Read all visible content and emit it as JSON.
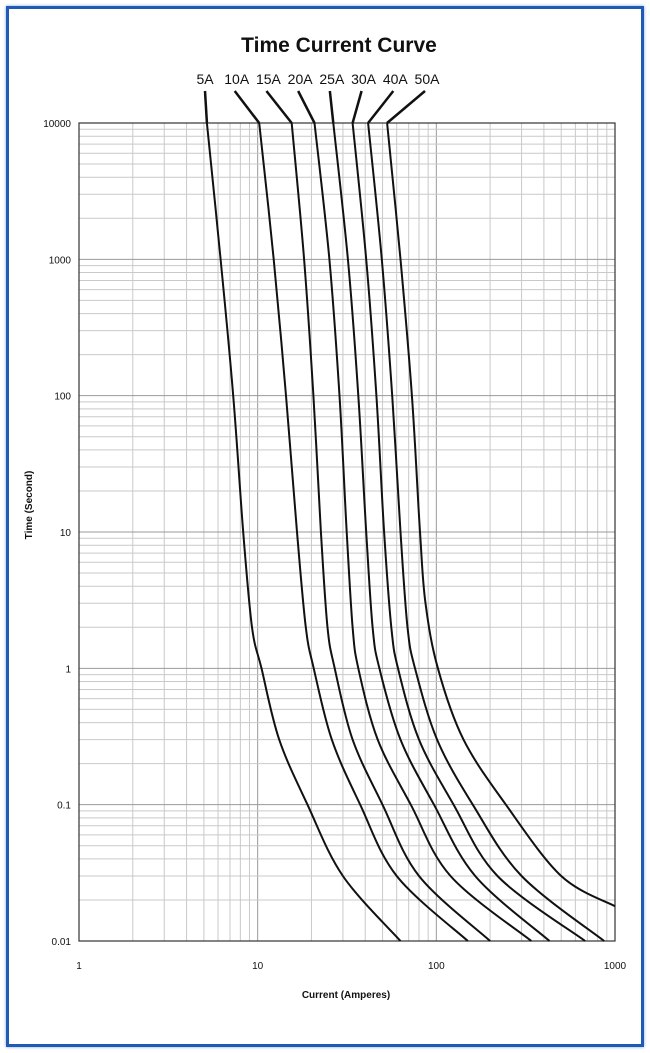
{
  "chart_data": {
    "type": "line",
    "title": "Time Current Curve",
    "xlabel": "Current (Amperes)",
    "ylabel": "Time (Second)",
    "xscale": "log",
    "yscale": "log",
    "xlim": [
      1,
      1000
    ],
    "ylim": [
      0.01,
      10000
    ],
    "grid": true,
    "x_tick_labels": [
      "1",
      "10",
      "100",
      "1000"
    ],
    "y_tick_labels": [
      "0.01",
      "0.1",
      "1",
      "10",
      "100",
      "1000",
      "10000"
    ],
    "series": [
      {
        "name": "5A",
        "points": [
          [
            5.2,
            10000
          ],
          [
            6.2,
            1000
          ],
          [
            7.3,
            100
          ],
          [
            8.3,
            10
          ],
          [
            9.3,
            2
          ],
          [
            10.5,
            1
          ],
          [
            13.2,
            0.3
          ],
          [
            19,
            0.1
          ],
          [
            30,
            0.03
          ],
          [
            63,
            0.01
          ]
        ]
      },
      {
        "name": "10A",
        "points": [
          [
            10.2,
            10000
          ],
          [
            12.3,
            1000
          ],
          [
            14.4,
            100
          ],
          [
            16.6,
            10
          ],
          [
            18.6,
            2
          ],
          [
            20.6,
            1
          ],
          [
            26,
            0.3
          ],
          [
            37.5,
            0.1
          ],
          [
            60,
            0.03
          ],
          [
            150,
            0.01
          ]
        ]
      },
      {
        "name": "15A",
        "points": [
          [
            15.5,
            10000
          ],
          [
            18.2,
            1000
          ],
          [
            20.5,
            100
          ],
          [
            22.6,
            10
          ],
          [
            24.6,
            2
          ],
          [
            27,
            1
          ],
          [
            34,
            0.3
          ],
          [
            50,
            0.1
          ],
          [
            80,
            0.03
          ],
          [
            200,
            0.01
          ]
        ]
      },
      {
        "name": "20A",
        "points": [
          [
            20.8,
            10000
          ],
          [
            25.2,
            1000
          ],
          [
            28.7,
            100
          ],
          [
            31.5,
            10
          ],
          [
            34,
            2
          ],
          [
            36.6,
            1
          ],
          [
            47,
            0.3
          ],
          [
            72,
            0.1
          ],
          [
            120,
            0.03
          ],
          [
            340,
            0.01
          ]
        ]
      },
      {
        "name": "25A",
        "points": [
          [
            26.5,
            10000
          ],
          [
            32,
            1000
          ],
          [
            36.6,
            100
          ],
          [
            40.5,
            10
          ],
          [
            44,
            2
          ],
          [
            48,
            1
          ],
          [
            63,
            0.3
          ],
          [
            97,
            0.1
          ],
          [
            165,
            0.03
          ],
          [
            430,
            0.01
          ]
        ]
      },
      {
        "name": "30A",
        "points": [
          [
            34,
            10000
          ],
          [
            40.5,
            1000
          ],
          [
            46.2,
            100
          ],
          [
            51,
            10
          ],
          [
            56,
            2
          ],
          [
            61,
            1
          ],
          [
            80,
            0.3
          ],
          [
            125,
            0.1
          ],
          [
            220,
            0.03
          ],
          [
            680,
            0.01
          ]
        ]
      },
      {
        "name": "40A",
        "points": [
          [
            41.5,
            10000
          ],
          [
            49.5,
            1000
          ],
          [
            56.6,
            100
          ],
          [
            63,
            10
          ],
          [
            69,
            2
          ],
          [
            76,
            1
          ],
          [
            101,
            0.3
          ],
          [
            160,
            0.1
          ],
          [
            300,
            0.03
          ],
          [
            870,
            0.01
          ]
        ]
      },
      {
        "name": "50A",
        "points": [
          [
            53,
            10000
          ],
          [
            63,
            1000
          ],
          [
            73,
            100
          ],
          [
            81,
            10
          ],
          [
            87,
            3
          ],
          [
            102,
            1
          ],
          [
            142,
            0.3
          ],
          [
            245,
            0.1
          ],
          [
            500,
            0.03
          ],
          [
            1000,
            0.018
          ]
        ]
      }
    ]
  }
}
